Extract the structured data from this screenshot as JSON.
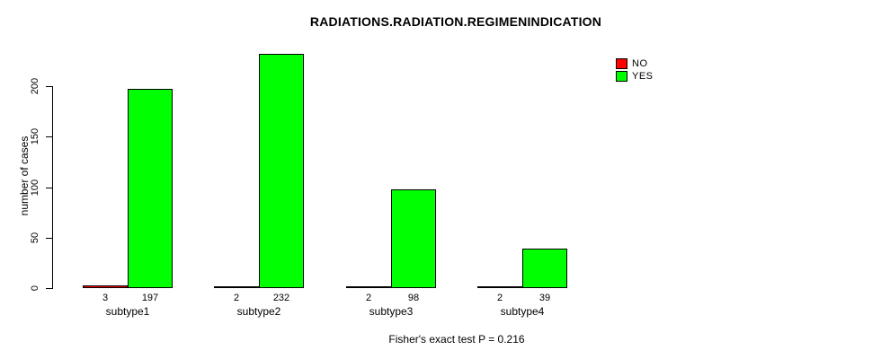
{
  "chart_data": {
    "type": "bar",
    "title": "RADIATIONS.RADIATION.REGIMENINDICATION",
    "xlabel": "",
    "ylabel": "number of cases",
    "categories": [
      "subtype1",
      "subtype2",
      "subtype3",
      "subtype4"
    ],
    "series": [
      {
        "name": "NO",
        "color": "#ff0000",
        "values": [
          3,
          2,
          2,
          2
        ]
      },
      {
        "name": "YES",
        "color": "#00ff00",
        "values": [
          197,
          232,
          98,
          39
        ]
      }
    ],
    "yticks": [
      0,
      50,
      100,
      150,
      200
    ],
    "ylim": [
      0,
      235
    ],
    "grid": false,
    "legend_position": "top-right",
    "bar_value_labels_shown": true,
    "annotation": "Fisher's exact test P = 0.216"
  },
  "colors": {
    "background": "#ffffff",
    "axis": "#000000",
    "text": "#000000",
    "bar_no": "#ff0000",
    "bar_yes": "#00ff00"
  }
}
